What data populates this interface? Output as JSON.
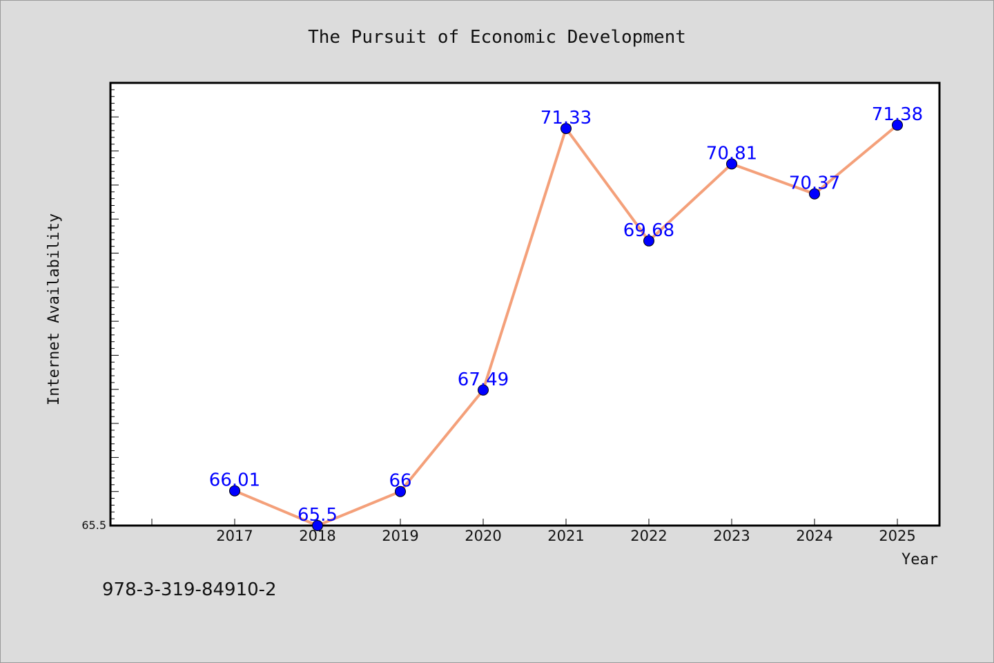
{
  "chart_data": {
    "type": "line",
    "title": "The Pursuit of Economic Development",
    "xlabel": "Year",
    "ylabel": "Internet Availability",
    "categories": [
      "2017",
      "2018",
      "2019",
      "2020",
      "2021",
      "2022",
      "2023",
      "2024",
      "2025"
    ],
    "series": [
      {
        "values": [
          66.01,
          65.5,
          66,
          67.49,
          71.33,
          69.68,
          70.81,
          70.37,
          71.38
        ],
        "labels": [
          "66.01",
          "65.5",
          "66",
          "67.49",
          "71.33",
          "69.68",
          "70.81",
          "70.37",
          "71.38"
        ],
        "line_color": "#f4a07a",
        "marker_color": "#0000ff"
      }
    ],
    "ylim": [
      65.5,
      72
    ],
    "yticks_labeled": [
      "65.5"
    ],
    "grid": false,
    "legend": "none"
  },
  "footer_text": "978-3-319-84910-2",
  "colors": {
    "background": "#dcdcdc",
    "plot_background": "#ffffff",
    "data_label": "#0000ff"
  }
}
